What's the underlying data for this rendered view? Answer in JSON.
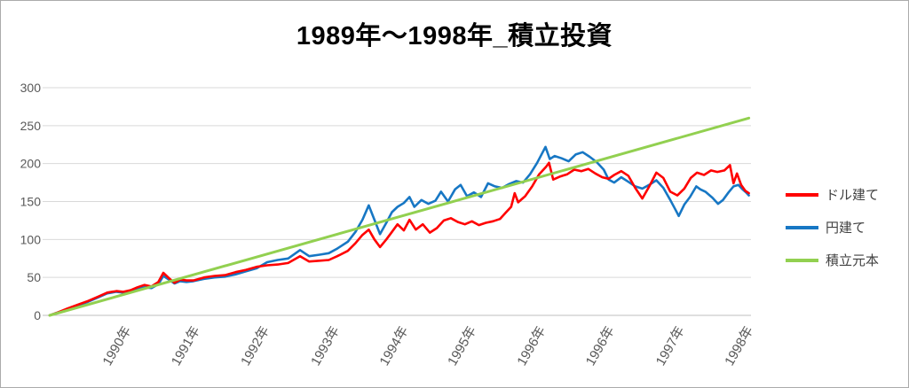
{
  "title": "1989年～1998年_積立投資",
  "legend": {
    "position": "right",
    "items": [
      {
        "label": "ドル建て",
        "color": "#ff0000"
      },
      {
        "label": "円建て",
        "color": "#1777c4"
      },
      {
        "label": "積立元本",
        "color": "#92d050"
      }
    ]
  },
  "style": {
    "grid_color": "#d9d9d9",
    "axis_line_color": "#bfbfbf",
    "tick_label_color": "#595959",
    "title_color": "#000000",
    "border_color": "#ababab",
    "background": "#ffffff"
  },
  "chart_data": {
    "type": "line",
    "title": "1989年～1998年_積立投資",
    "xlabel": "",
    "ylabel": "",
    "grid": "horizontal",
    "legend_position": "right",
    "x_axis": {
      "range": [
        1989.0,
        1999.0
      ],
      "tick_years": [
        1990.1,
        1991.08,
        1992.07,
        1993.07,
        1994.05,
        1995.02,
        1996.01,
        1996.99,
        1997.99,
        1998.97
      ],
      "tick_labels": [
        "1990年",
        "1991年",
        "1992年",
        "1993年",
        "1994年",
        "1995年",
        "1996年",
        "1996年",
        "1997年",
        "1998年"
      ]
    },
    "y_axis": {
      "range": [
        0,
        300
      ],
      "ticks": [
        0,
        50,
        100,
        150,
        200,
        250,
        300
      ]
    },
    "series": [
      {
        "name": "ドル建て",
        "color": "#ff0000",
        "z": 2,
        "width": 2.6,
        "points": [
          [
            1989.0,
            0
          ],
          [
            1989.12,
            4
          ],
          [
            1989.25,
            9
          ],
          [
            1989.4,
            14
          ],
          [
            1989.55,
            19
          ],
          [
            1989.7,
            25
          ],
          [
            1989.82,
            30
          ],
          [
            1989.95,
            32
          ],
          [
            1990.05,
            31
          ],
          [
            1990.15,
            33
          ],
          [
            1990.25,
            37
          ],
          [
            1990.35,
            40
          ],
          [
            1990.45,
            38
          ],
          [
            1990.55,
            44
          ],
          [
            1990.62,
            56
          ],
          [
            1990.7,
            49
          ],
          [
            1990.78,
            43
          ],
          [
            1990.86,
            47
          ],
          [
            1990.95,
            46
          ],
          [
            1991.05,
            46
          ],
          [
            1991.2,
            50
          ],
          [
            1991.35,
            52
          ],
          [
            1991.5,
            53
          ],
          [
            1991.65,
            57
          ],
          [
            1991.8,
            60
          ],
          [
            1991.95,
            64
          ],
          [
            1992.1,
            66
          ],
          [
            1992.25,
            67
          ],
          [
            1992.4,
            69
          ],
          [
            1992.57,
            78
          ],
          [
            1992.7,
            71
          ],
          [
            1992.85,
            72
          ],
          [
            1992.98,
            73
          ],
          [
            1993.1,
            78
          ],
          [
            1993.25,
            85
          ],
          [
            1993.36,
            95
          ],
          [
            1993.46,
            106
          ],
          [
            1993.55,
            113
          ],
          [
            1993.63,
            100
          ],
          [
            1993.71,
            90
          ],
          [
            1993.8,
            100
          ],
          [
            1993.88,
            110
          ],
          [
            1993.96,
            120
          ],
          [
            1994.05,
            112
          ],
          [
            1994.13,
            126
          ],
          [
            1994.22,
            113
          ],
          [
            1994.32,
            120
          ],
          [
            1994.42,
            109
          ],
          [
            1994.52,
            115
          ],
          [
            1994.62,
            125
          ],
          [
            1994.72,
            128
          ],
          [
            1994.82,
            123
          ],
          [
            1994.92,
            120
          ],
          [
            1995.02,
            124
          ],
          [
            1995.12,
            119
          ],
          [
            1995.22,
            122
          ],
          [
            1995.32,
            124
          ],
          [
            1995.42,
            127
          ],
          [
            1995.5,
            135
          ],
          [
            1995.58,
            143
          ],
          [
            1995.63,
            161
          ],
          [
            1995.68,
            149
          ],
          [
            1995.78,
            157
          ],
          [
            1995.88,
            170
          ],
          [
            1995.98,
            186
          ],
          [
            1996.08,
            196
          ],
          [
            1996.12,
            201
          ],
          [
            1996.18,
            179
          ],
          [
            1996.28,
            183
          ],
          [
            1996.38,
            186
          ],
          [
            1996.48,
            192
          ],
          [
            1996.58,
            190
          ],
          [
            1996.68,
            193
          ],
          [
            1996.78,
            187
          ],
          [
            1996.88,
            182
          ],
          [
            1996.97,
            180
          ],
          [
            1997.05,
            185
          ],
          [
            1997.15,
            190
          ],
          [
            1997.25,
            184
          ],
          [
            1997.35,
            168
          ],
          [
            1997.45,
            154
          ],
          [
            1997.55,
            170
          ],
          [
            1997.65,
            188
          ],
          [
            1997.75,
            181
          ],
          [
            1997.85,
            163
          ],
          [
            1997.95,
            158
          ],
          [
            1998.05,
            167
          ],
          [
            1998.14,
            181
          ],
          [
            1998.23,
            188
          ],
          [
            1998.33,
            185
          ],
          [
            1998.43,
            191
          ],
          [
            1998.52,
            189
          ],
          [
            1998.62,
            191
          ],
          [
            1998.7,
            198
          ],
          [
            1998.75,
            174
          ],
          [
            1998.8,
            187
          ],
          [
            1998.86,
            172
          ],
          [
            1998.92,
            164
          ],
          [
            1998.97,
            161
          ]
        ]
      },
      {
        "name": "円建て",
        "color": "#1777c4",
        "z": 1,
        "width": 2.6,
        "points": [
          [
            1989.0,
            0
          ],
          [
            1989.12,
            4
          ],
          [
            1989.25,
            8
          ],
          [
            1989.4,
            13
          ],
          [
            1989.55,
            18
          ],
          [
            1989.7,
            24
          ],
          [
            1989.82,
            29
          ],
          [
            1989.95,
            31
          ],
          [
            1990.05,
            30
          ],
          [
            1990.15,
            32
          ],
          [
            1990.25,
            35
          ],
          [
            1990.35,
            37
          ],
          [
            1990.45,
            36
          ],
          [
            1990.55,
            41
          ],
          [
            1990.62,
            52
          ],
          [
            1990.7,
            47
          ],
          [
            1990.78,
            42
          ],
          [
            1990.86,
            45
          ],
          [
            1990.95,
            44
          ],
          [
            1991.05,
            45
          ],
          [
            1991.2,
            48
          ],
          [
            1991.35,
            50
          ],
          [
            1991.5,
            51
          ],
          [
            1991.65,
            54
          ],
          [
            1991.8,
            58
          ],
          [
            1991.95,
            62
          ],
          [
            1992.1,
            70
          ],
          [
            1992.25,
            73
          ],
          [
            1992.4,
            75
          ],
          [
            1992.57,
            86
          ],
          [
            1992.7,
            78
          ],
          [
            1992.85,
            80
          ],
          [
            1992.98,
            82
          ],
          [
            1993.1,
            88
          ],
          [
            1993.25,
            97
          ],
          [
            1993.36,
            110
          ],
          [
            1993.46,
            126
          ],
          [
            1993.55,
            145
          ],
          [
            1993.63,
            126
          ],
          [
            1993.71,
            107
          ],
          [
            1993.8,
            122
          ],
          [
            1993.88,
            136
          ],
          [
            1993.96,
            143
          ],
          [
            1994.05,
            148
          ],
          [
            1994.13,
            156
          ],
          [
            1994.2,
            143
          ],
          [
            1994.3,
            152
          ],
          [
            1994.4,
            147
          ],
          [
            1994.5,
            151
          ],
          [
            1994.58,
            163
          ],
          [
            1994.68,
            150
          ],
          [
            1994.78,
            166
          ],
          [
            1994.86,
            172
          ],
          [
            1994.95,
            157
          ],
          [
            1995.05,
            162
          ],
          [
            1995.15,
            156
          ],
          [
            1995.25,
            174
          ],
          [
            1995.35,
            170
          ],
          [
            1995.45,
            168
          ],
          [
            1995.55,
            173
          ],
          [
            1995.65,
            177
          ],
          [
            1995.75,
            175
          ],
          [
            1995.85,
            186
          ],
          [
            1995.95,
            201
          ],
          [
            1996.07,
            222
          ],
          [
            1996.13,
            206
          ],
          [
            1996.2,
            210
          ],
          [
            1996.3,
            207
          ],
          [
            1996.4,
            203
          ],
          [
            1996.5,
            212
          ],
          [
            1996.6,
            215
          ],
          [
            1996.7,
            209
          ],
          [
            1996.8,
            202
          ],
          [
            1996.9,
            192
          ],
          [
            1996.97,
            179
          ],
          [
            1997.05,
            175
          ],
          [
            1997.15,
            182
          ],
          [
            1997.25,
            176
          ],
          [
            1997.35,
            170
          ],
          [
            1997.45,
            167
          ],
          [
            1997.55,
            172
          ],
          [
            1997.65,
            178
          ],
          [
            1997.75,
            168
          ],
          [
            1997.85,
            152
          ],
          [
            1997.93,
            138
          ],
          [
            1997.97,
            131
          ],
          [
            1998.05,
            146
          ],
          [
            1998.13,
            156
          ],
          [
            1998.22,
            170
          ],
          [
            1998.28,
            166
          ],
          [
            1998.35,
            163
          ],
          [
            1998.45,
            155
          ],
          [
            1998.53,
            147
          ],
          [
            1998.6,
            152
          ],
          [
            1998.68,
            162
          ],
          [
            1998.75,
            170
          ],
          [
            1998.82,
            172
          ],
          [
            1998.88,
            166
          ],
          [
            1998.93,
            162
          ],
          [
            1998.97,
            158
          ]
        ]
      },
      {
        "name": "積立元本",
        "color": "#92d050",
        "z": 3,
        "width": 3,
        "points": [
          [
            1989.0,
            0
          ],
          [
            1998.97,
            260
          ]
        ]
      }
    ]
  }
}
